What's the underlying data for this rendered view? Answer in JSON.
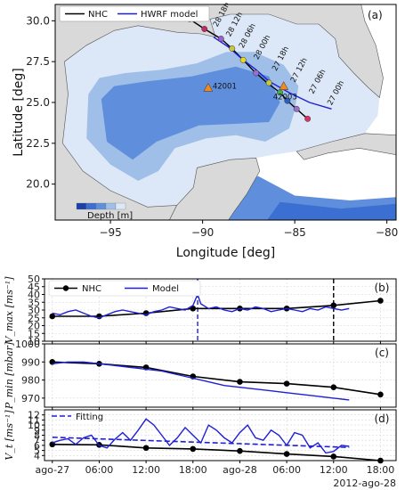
{
  "colors": {
    "nhc": "#000000",
    "model": "#1f1fd6",
    "land": "#d9d9d9",
    "shelf": "#dce8f7",
    "deep1": "#9fbfe9",
    "deep2": "#5f8fdc",
    "deep3": "#3b6fd1",
    "buoy": "#f0891e",
    "grid": "#d6d6d6"
  },
  "map": {
    "panel_label": "(a)",
    "xlabel": "Longitude [deg]",
    "ylabel": "Latitude [deg]",
    "xticks": [
      -95,
      -90,
      -85,
      -80
    ],
    "yticks": [
      20.0,
      22.5,
      25.0,
      27.5,
      30.0
    ],
    "xlim": [
      -98,
      -79.5
    ],
    "ylim": [
      17.8,
      31.0
    ],
    "legend": [
      "NHC",
      "HWRF model"
    ],
    "depth_label": "Depth [m]",
    "nhc_track": [
      [
        -84.3,
        24.0
      ],
      [
        -84.8,
        24.5
      ],
      [
        -85.3,
        25.0
      ],
      [
        -85.8,
        25.6
      ],
      [
        -86.5,
        26.2
      ],
      [
        -87.2,
        26.9
      ],
      [
        -87.8,
        27.6
      ],
      [
        -88.4,
        28.3
      ],
      [
        -89.0,
        28.9
      ],
      [
        -89.9,
        29.5
      ],
      [
        -90.7,
        30.1
      ]
    ],
    "model_track": [
      [
        -83.0,
        24.6
      ],
      [
        -84.2,
        25.0
      ],
      [
        -85.3,
        25.6
      ],
      [
        -86.4,
        26.3
      ],
      [
        -87.1,
        27.0
      ],
      [
        -87.9,
        27.7
      ],
      [
        -88.6,
        28.4
      ],
      [
        -89.4,
        29.0
      ]
    ],
    "track_points": [
      {
        "lon": -84.3,
        "lat": 24.0,
        "color": "#e0306a"
      },
      {
        "lon": -84.9,
        "lat": 24.6,
        "color": "#9b6fc8"
      },
      {
        "lon": -85.4,
        "lat": 25.1,
        "color": "#2a5fc0"
      },
      {
        "lon": -85.8,
        "lat": 25.6,
        "color": "#3fae5a"
      },
      {
        "lon": -86.4,
        "lat": 26.2,
        "color": "#c8c83a"
      },
      {
        "lon": -87.1,
        "lat": 26.8,
        "color": "#9b6fc8"
      },
      {
        "lon": -87.8,
        "lat": 27.6,
        "color": "#e8d81a"
      },
      {
        "lon": -88.4,
        "lat": 28.3,
        "color": "#c8c83a"
      },
      {
        "lon": -89.0,
        "lat": 28.9,
        "color": "#9b5fd0"
      },
      {
        "lon": -89.9,
        "lat": 29.5,
        "color": "#c02a6a"
      },
      {
        "lon": -90.7,
        "lat": 30.1,
        "color": "#d77fd8"
      }
    ],
    "track_labels": [
      {
        "text": "28 18h",
        "lon": -89.2,
        "lat": 29.6
      },
      {
        "text": "28 12h",
        "lon": -88.5,
        "lat": 29.0
      },
      {
        "text": "28 06h",
        "lon": -87.8,
        "lat": 28.3
      },
      {
        "text": "28 00h",
        "lon": -87.0,
        "lat": 27.6
      },
      {
        "text": "27 18h",
        "lon": -86.0,
        "lat": 26.9
      },
      {
        "text": "27 12h",
        "lon": -85.0,
        "lat": 26.2
      },
      {
        "text": "27 06h",
        "lon": -84.0,
        "lat": 25.5
      },
      {
        "text": "27 00h",
        "lon": -83.0,
        "lat": 24.8
      }
    ],
    "buoys": [
      {
        "id": "42001",
        "lon": -89.7,
        "lat": 25.9
      },
      {
        "id": "42003",
        "lon": -85.6,
        "lat": 26.0
      }
    ]
  },
  "chart_data": [
    {
      "type": "line",
      "panel_label": "(b)",
      "ylabel": "V_max [ms⁻¹]",
      "ylim": [
        10,
        50
      ],
      "yticks": [
        10,
        15,
        20,
        25,
        30,
        35,
        40,
        45,
        50
      ],
      "x_hours": [
        0,
        6,
        12,
        18,
        24,
        30,
        36,
        42
      ],
      "legend": [
        "NHC",
        "Model"
      ],
      "vlines": [
        {
          "x": 18.6,
          "style": "dashed",
          "color": "model"
        },
        {
          "x": 36.0,
          "style": "dashed",
          "color": "nhc"
        }
      ],
      "series": [
        {
          "name": "NHC",
          "x": [
            0,
            6,
            12,
            18,
            24,
            30,
            36,
            42
          ],
          "values": [
            26,
            26,
            28,
            31,
            31,
            31,
            33,
            36
          ]
        },
        {
          "name": "Model",
          "x": [
            0,
            1,
            2,
            3,
            4,
            5,
            6,
            7,
            8,
            9,
            10,
            11,
            12,
            13,
            14,
            15,
            16,
            17,
            18,
            18.6,
            19,
            20,
            21,
            22,
            23,
            24,
            25,
            26,
            27,
            28,
            29,
            30,
            31,
            32,
            33,
            34,
            35,
            36,
            37,
            38
          ],
          "values": [
            28,
            27,
            29,
            30,
            28,
            26,
            25,
            27,
            29,
            30,
            29,
            28,
            27,
            29,
            30,
            32,
            31,
            30,
            33,
            40,
            34,
            31,
            32,
            30,
            29,
            31,
            30,
            32,
            31,
            29,
            30,
            31,
            30,
            29,
            31,
            30,
            32,
            31,
            30,
            31
          ]
        }
      ]
    },
    {
      "type": "line",
      "panel_label": "(c)",
      "ylabel": "P_min [mbar]",
      "ylim": [
        965,
        1000
      ],
      "yticks": [
        970,
        980,
        990,
        1000
      ],
      "x_hours": [
        0,
        6,
        12,
        18,
        24,
        30,
        36,
        42
      ],
      "series": [
        {
          "name": "NHC",
          "x": [
            0,
            6,
            12,
            18,
            24,
            30,
            36,
            42
          ],
          "values": [
            990,
            989,
            987,
            982,
            979,
            978,
            976,
            972
          ]
        },
        {
          "name": "Model",
          "x": [
            0,
            2,
            4,
            6,
            8,
            10,
            12,
            14,
            16,
            18,
            20,
            22,
            24,
            26,
            28,
            30,
            32,
            34,
            36,
            38
          ],
          "values": [
            989,
            990,
            990,
            989,
            988,
            987,
            986,
            985,
            983,
            981,
            979,
            977,
            976,
            975,
            974,
            973,
            972,
            971,
            970,
            969
          ]
        }
      ]
    },
    {
      "type": "line",
      "panel_label": "(d)",
      "ylabel": "V_t [ms⁻¹]",
      "ylim": [
        3,
        13
      ],
      "yticks": [
        4,
        5,
        6,
        7,
        8,
        9,
        10,
        11,
        12
      ],
      "legend": [
        "Fitting"
      ],
      "xticklabels": [
        "ago-27",
        "06:00",
        "12:00",
        "18:00",
        "ago-28",
        "06:00",
        "12:00",
        "18:00"
      ],
      "x_hours": [
        0,
        6,
        12,
        18,
        24,
        30,
        36,
        42
      ],
      "x_offset_label": "2012-ago-28",
      "series": [
        {
          "name": "NHC",
          "x": [
            0,
            6,
            12,
            18,
            24,
            30,
            36,
            42
          ],
          "values": [
            6.2,
            6.1,
            5.5,
            5.3,
            4.9,
            4.3,
            3.8,
            3.0
          ]
        },
        {
          "name": "Model",
          "x": [
            0,
            1,
            2,
            3,
            4,
            5,
            6,
            7,
            8,
            9,
            10,
            11,
            12,
            13,
            14,
            15,
            16,
            17,
            18,
            19,
            20,
            21,
            22,
            23,
            24,
            25,
            26,
            27,
            28,
            29,
            30,
            31,
            32,
            33,
            34,
            35,
            36,
            37,
            38
          ],
          "values": [
            6.5,
            7.0,
            7.3,
            6.2,
            7.5,
            8.0,
            6.0,
            5.5,
            7.2,
            8.5,
            7.0,
            9.0,
            11.2,
            10.0,
            8.0,
            6.0,
            7.5,
            9.5,
            8.0,
            6.5,
            10.0,
            9.0,
            7.5,
            6.5,
            8.5,
            10.0,
            7.5,
            7.0,
            9.0,
            8.0,
            6.0,
            8.5,
            8.0,
            5.5,
            6.5,
            4.5,
            4.8,
            6.0,
            5.8
          ]
        },
        {
          "name": "Fitting",
          "x": [
            0,
            38
          ],
          "values": [
            7.6,
            5.6
          ]
        }
      ]
    }
  ]
}
